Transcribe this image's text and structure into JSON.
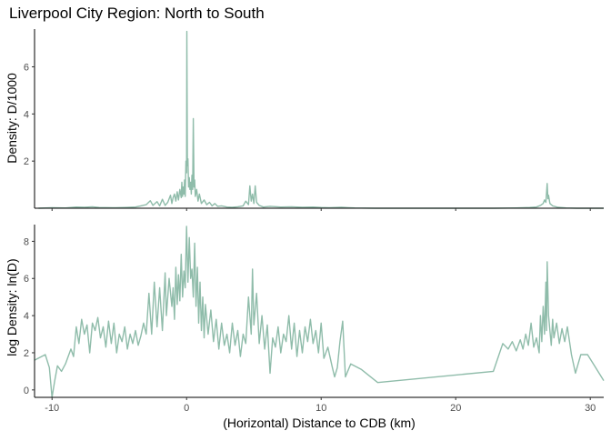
{
  "title": "Liverpool City Region: North to South",
  "xlabel": "(Horizontal) Distance to CDB (km)",
  "colors": {
    "line": "#8fbcaa",
    "axis": "#000000",
    "text": "#4d4d4d"
  },
  "chart_data": [
    {
      "type": "line",
      "title": "Liverpool City Region: North to South",
      "xlabel": "",
      "ylabel": "Density: D/1000",
      "xlim": [
        -11.3,
        31
      ],
      "ylim": [
        0,
        7.6
      ],
      "yticks": [
        2,
        4,
        6
      ],
      "grid": false,
      "legend": "none",
      "series": [
        {
          "points": [
            [
              -11,
              0.0
            ],
            [
              -10,
              0.02
            ],
            [
              -9,
              0.01
            ],
            [
              -8.2,
              0.05
            ],
            [
              -7.6,
              0.04
            ],
            [
              -7,
              0.06
            ],
            [
              -6.5,
              0.03
            ],
            [
              -5.5,
              0.02
            ],
            [
              -4.6,
              0.03
            ],
            [
              -3.8,
              0.05
            ],
            [
              -3.4,
              0.1
            ],
            [
              -3.0,
              0.15
            ],
            [
              -2.7,
              0.32
            ],
            [
              -2.5,
              0.12
            ],
            [
              -2.2,
              0.28
            ],
            [
              -2.0,
              0.1
            ],
            [
              -1.8,
              0.38
            ],
            [
              -1.6,
              0.12
            ],
            [
              -1.4,
              0.25
            ],
            [
              -1.2,
              0.55
            ],
            [
              -1.1,
              0.2
            ],
            [
              -1.0,
              0.45
            ],
            [
              -0.9,
              0.6
            ],
            [
              -0.8,
              0.3
            ],
            [
              -0.7,
              0.7
            ],
            [
              -0.6,
              0.35
            ],
            [
              -0.5,
              0.8
            ],
            [
              -0.4,
              0.45
            ],
            [
              -0.35,
              1.1
            ],
            [
              -0.3,
              0.5
            ],
            [
              -0.25,
              0.9
            ],
            [
              -0.2,
              0.6
            ],
            [
              -0.15,
              1.2
            ],
            [
              -0.1,
              0.5
            ],
            [
              -0.05,
              2.0
            ],
            [
              0.0,
              1.5
            ],
            [
              0.02,
              7.5
            ],
            [
              0.06,
              1.8
            ],
            [
              0.1,
              2.1
            ],
            [
              0.15,
              0.9
            ],
            [
              0.2,
              1.3
            ],
            [
              0.25,
              0.8
            ],
            [
              0.3,
              1.1
            ],
            [
              0.35,
              0.6
            ],
            [
              0.4,
              1.4
            ],
            [
              0.45,
              0.8
            ],
            [
              0.5,
              3.8
            ],
            [
              0.55,
              0.9
            ],
            [
              0.6,
              1.2
            ],
            [
              0.65,
              0.5
            ],
            [
              0.75,
              0.8
            ],
            [
              0.85,
              0.3
            ],
            [
              0.95,
              0.6
            ],
            [
              1.1,
              0.2
            ],
            [
              1.3,
              0.35
            ],
            [
              1.5,
              0.15
            ],
            [
              1.7,
              0.25
            ],
            [
              1.9,
              0.1
            ],
            [
              2.1,
              0.2
            ],
            [
              2.3,
              0.08
            ],
            [
              2.6,
              0.1
            ],
            [
              3.0,
              0.05
            ],
            [
              3.4,
              0.04
            ],
            [
              3.8,
              0.06
            ],
            [
              4.2,
              0.1
            ],
            [
              4.4,
              0.3
            ],
            [
              4.6,
              0.15
            ],
            [
              4.7,
              0.95
            ],
            [
              4.8,
              0.3
            ],
            [
              4.9,
              0.6
            ],
            [
              5.0,
              0.2
            ],
            [
              5.1,
              0.95
            ],
            [
              5.2,
              0.25
            ],
            [
              5.4,
              0.12
            ],
            [
              5.7,
              0.05
            ],
            [
              6.2,
              0.08
            ],
            [
              7.0,
              0.05
            ],
            [
              7.8,
              0.06
            ],
            [
              8.6,
              0.04
            ],
            [
              9.4,
              0.05
            ],
            [
              10.0,
              0.03
            ],
            [
              10.6,
              0.02
            ],
            [
              11.5,
              0.04
            ],
            [
              12.5,
              0.01
            ],
            [
              14,
              0.0
            ],
            [
              18,
              0.0
            ],
            [
              22.8,
              0.0
            ],
            [
              24.5,
              0.01
            ],
            [
              25.5,
              0.03
            ],
            [
              26.0,
              0.05
            ],
            [
              26.3,
              0.12
            ],
            [
              26.5,
              0.2
            ],
            [
              26.6,
              0.35
            ],
            [
              26.7,
              0.25
            ],
            [
              26.8,
              1.05
            ],
            [
              26.85,
              0.4
            ],
            [
              26.9,
              0.55
            ],
            [
              27.0,
              0.2
            ],
            [
              27.2,
              0.1
            ],
            [
              27.6,
              0.04
            ],
            [
              28.2,
              0.01
            ],
            [
              29,
              0.0
            ],
            [
              31,
              0.0
            ]
          ]
        }
      ]
    },
    {
      "type": "line",
      "title": "",
      "xlabel": "(Horizontal) Distance to CDB (km)",
      "ylabel": "log Density: ln(D)",
      "xlim": [
        -11.3,
        31
      ],
      "ylim": [
        -0.4,
        8.9
      ],
      "xticks": [
        -10,
        0,
        10,
        20,
        30
      ],
      "yticks": [
        0,
        2,
        4,
        6,
        8
      ],
      "grid": false,
      "legend": "none",
      "series": [
        {
          "points": [
            [
              -11.3,
              1.6
            ],
            [
              -10.5,
              1.9
            ],
            [
              -10.2,
              1.2
            ],
            [
              -10.0,
              -0.4
            ],
            [
              -9.8,
              0.5
            ],
            [
              -9.6,
              1.3
            ],
            [
              -9.3,
              1.0
            ],
            [
              -9.0,
              1.4
            ],
            [
              -8.6,
              2.2
            ],
            [
              -8.4,
              1.8
            ],
            [
              -8.2,
              3.4
            ],
            [
              -8.0,
              2.5
            ],
            [
              -7.8,
              3.8
            ],
            [
              -7.6,
              3.0
            ],
            [
              -7.4,
              3.5
            ],
            [
              -7.2,
              2.0
            ],
            [
              -7.0,
              3.6
            ],
            [
              -6.8,
              3.2
            ],
            [
              -6.6,
              3.9
            ],
            [
              -6.4,
              2.8
            ],
            [
              -6.2,
              3.4
            ],
            [
              -6.0,
              2.3
            ],
            [
              -5.8,
              3.7
            ],
            [
              -5.6,
              2.5
            ],
            [
              -5.4,
              3.6
            ],
            [
              -5.2,
              2.0
            ],
            [
              -5.0,
              3.0
            ],
            [
              -4.8,
              2.6
            ],
            [
              -4.6,
              3.4
            ],
            [
              -4.4,
              2.2
            ],
            [
              -4.2,
              3.0
            ],
            [
              -4.0,
              2.5
            ],
            [
              -3.8,
              3.2
            ],
            [
              -3.6,
              2.4
            ],
            [
              -3.4,
              2.9
            ],
            [
              -3.2,
              3.6
            ],
            [
              -3.0,
              3.0
            ],
            [
              -2.8,
              5.2
            ],
            [
              -2.6,
              3.0
            ],
            [
              -2.4,
              5.8
            ],
            [
              -2.2,
              3.4
            ],
            [
              -2.0,
              5.5
            ],
            [
              -1.8,
              3.2
            ],
            [
              -1.6,
              6.3
            ],
            [
              -1.5,
              4.0
            ],
            [
              -1.3,
              6.0
            ],
            [
              -1.1,
              4.5
            ],
            [
              -1.0,
              5.5
            ],
            [
              -0.9,
              3.8
            ],
            [
              -0.8,
              6.6
            ],
            [
              -0.7,
              4.6
            ],
            [
              -0.6,
              6.2
            ],
            [
              -0.5,
              4.8
            ],
            [
              -0.4,
              7.3
            ],
            [
              -0.3,
              5.0
            ],
            [
              -0.2,
              6.4
            ],
            [
              -0.1,
              5.5
            ],
            [
              0.0,
              8.8
            ],
            [
              0.1,
              5.8
            ],
            [
              0.2,
              8.2
            ],
            [
              0.3,
              6.0
            ],
            [
              0.4,
              6.5
            ],
            [
              0.5,
              5.0
            ],
            [
              0.6,
              7.9
            ],
            [
              0.7,
              4.5
            ],
            [
              0.8,
              6.6
            ],
            [
              0.9,
              3.6
            ],
            [
              1.0,
              5.8
            ],
            [
              1.1,
              3.2
            ],
            [
              1.2,
              5.0
            ],
            [
              1.3,
              2.8
            ],
            [
              1.4,
              4.6
            ],
            [
              1.6,
              3.0
            ],
            [
              1.8,
              4.3
            ],
            [
              2.0,
              2.6
            ],
            [
              2.2,
              3.8
            ],
            [
              2.4,
              2.2
            ],
            [
              2.6,
              3.6
            ],
            [
              2.8,
              2.4
            ],
            [
              3.0,
              3.0
            ],
            [
              3.2,
              2.0
            ],
            [
              3.4,
              3.6
            ],
            [
              3.6,
              2.4
            ],
            [
              3.8,
              3.2
            ],
            [
              4.0,
              1.8
            ],
            [
              4.2,
              3.0
            ],
            [
              4.4,
              2.5
            ],
            [
              4.6,
              5.0
            ],
            [
              4.8,
              3.0
            ],
            [
              4.9,
              6.5
            ],
            [
              5.0,
              3.5
            ],
            [
              5.2,
              5.2
            ],
            [
              5.4,
              2.5
            ],
            [
              5.6,
              4.0
            ],
            [
              5.8,
              2.2
            ],
            [
              6.0,
              3.5
            ],
            [
              6.2,
              0.9
            ],
            [
              6.4,
              2.8
            ],
            [
              6.6,
              2.3
            ],
            [
              6.8,
              3.4
            ],
            [
              7.0,
              2.0
            ],
            [
              7.2,
              3.0
            ],
            [
              7.4,
              2.6
            ],
            [
              7.6,
              4.0
            ],
            [
              7.8,
              2.2
            ],
            [
              8.0,
              3.6
            ],
            [
              8.2,
              1.8
            ],
            [
              8.4,
              3.2
            ],
            [
              8.6,
              2.0
            ],
            [
              8.8,
              3.4
            ],
            [
              9.0,
              2.6
            ],
            [
              9.2,
              3.8
            ],
            [
              9.4,
              2.5
            ],
            [
              9.6,
              3.2
            ],
            [
              9.8,
              2.0
            ],
            [
              10.0,
              3.6
            ],
            [
              10.2,
              1.7
            ],
            [
              10.5,
              2.3
            ],
            [
              10.8,
              1.3
            ],
            [
              11.0,
              0.7
            ],
            [
              11.2,
              1.2
            ],
            [
              11.4,
              2.6
            ],
            [
              11.6,
              3.7
            ],
            [
              11.8,
              0.7
            ],
            [
              12.2,
              1.4
            ],
            [
              13.0,
              1.1
            ],
            [
              14.2,
              0.4
            ],
            [
              22.8,
              1.0
            ],
            [
              23.5,
              2.5
            ],
            [
              23.9,
              2.2
            ],
            [
              24.2,
              2.6
            ],
            [
              24.5,
              2.1
            ],
            [
              24.8,
              2.7
            ],
            [
              25.0,
              2.2
            ],
            [
              25.2,
              3.0
            ],
            [
              25.4,
              2.4
            ],
            [
              25.6,
              3.6
            ],
            [
              25.8,
              2.3
            ],
            [
              26.0,
              2.8
            ],
            [
              26.2,
              2.0
            ],
            [
              26.3,
              4.0
            ],
            [
              26.4,
              2.6
            ],
            [
              26.5,
              4.5
            ],
            [
              26.6,
              3.0
            ],
            [
              26.7,
              5.8
            ],
            [
              26.75,
              3.2
            ],
            [
              26.8,
              6.9
            ],
            [
              26.9,
              4.0
            ],
            [
              27.0,
              3.2
            ],
            [
              27.1,
              2.4
            ],
            [
              27.2,
              3.8
            ],
            [
              27.3,
              2.8
            ],
            [
              27.5,
              3.6
            ],
            [
              27.7,
              2.5
            ],
            [
              27.9,
              3.3
            ],
            [
              28.1,
              2.6
            ],
            [
              28.3,
              3.4
            ],
            [
              28.6,
              1.9
            ],
            [
              28.9,
              0.9
            ],
            [
              29.3,
              1.9
            ],
            [
              29.8,
              1.9
            ],
            [
              30.4,
              1.2
            ],
            [
              31.0,
              0.5
            ]
          ]
        }
      ]
    }
  ]
}
